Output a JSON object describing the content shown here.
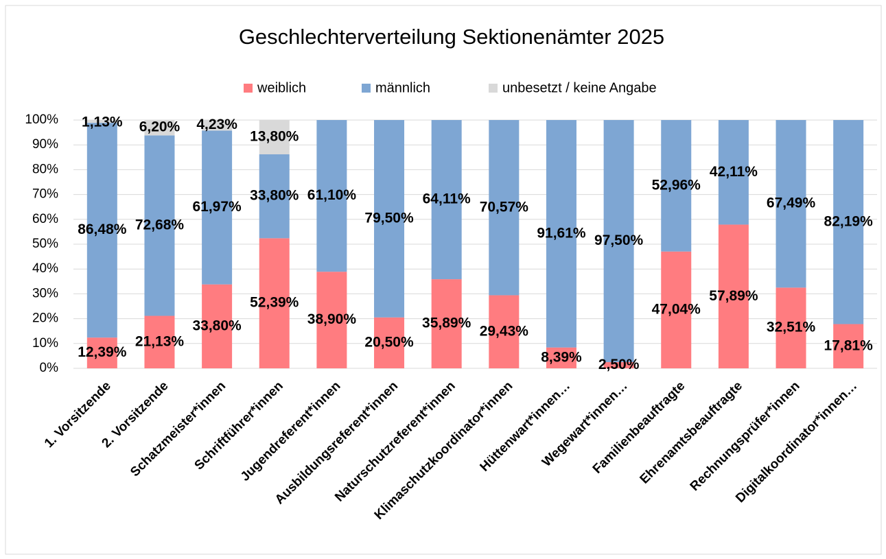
{
  "chart_data": {
    "type": "stacked_bar",
    "title": "Geschlechterverteilung Sektionenämter 2025",
    "categories": [
      "1. Vorsitzende",
      "2. Vorsitzende",
      "Schatzmeister*innen",
      "Schriftführer*innen",
      "Jugendreferent*innen",
      "Ausbildungsreferent*innen",
      "Naturschutzreferent*innen",
      "Klimaschutzkoordinator*innen",
      "Hüttenwart*innen…",
      "Wegewart*innen…",
      "Familienbeauftragte",
      "Ehrenamtsbeauftragte",
      "Rechnungsprüfer*innen",
      "Digitalkoordinator*innen…"
    ],
    "series": [
      {
        "name": "weiblich",
        "color": "#ff7c80",
        "values": [
          12.39,
          21.13,
          33.8,
          52.39,
          38.9,
          20.5,
          35.89,
          29.43,
          8.39,
          2.5,
          47.04,
          57.89,
          32.51,
          17.81
        ],
        "value_labels": [
          "12,39%",
          "21,13%",
          "33,80%",
          "52,39%",
          "38,90%",
          "20,50%",
          "35,89%",
          "29,43%",
          "8,39%",
          "2,50%",
          "47,04%",
          "57,89%",
          "32,51%",
          "17,81%"
        ]
      },
      {
        "name": "männlich",
        "color": "#7ea6d3",
        "values": [
          86.48,
          72.68,
          61.97,
          33.8,
          61.1,
          79.5,
          64.11,
          70.57,
          91.61,
          97.5,
          52.96,
          42.11,
          67.49,
          82.19
        ],
        "value_labels": [
          "86,48%",
          "72,68%",
          "61,97%",
          "33,80%",
          "61,10%",
          "79,50%",
          "64,11%",
          "70,57%",
          "91,61%",
          "97,50%",
          "52,96%",
          "42,11%",
          "67,49%",
          "82,19%"
        ]
      },
      {
        "name": "unbesetzt / keine Angabe",
        "color": "#d9d9d9",
        "values": [
          1.13,
          6.2,
          4.23,
          13.8,
          null,
          null,
          null,
          null,
          null,
          null,
          null,
          null,
          null,
          null
        ],
        "value_labels": [
          "1,13%",
          "6,20%",
          "4,23%",
          "13,80%",
          null,
          null,
          null,
          null,
          null,
          null,
          null,
          null,
          null,
          null
        ]
      }
    ],
    "ylim": [
      0,
      100
    ],
    "yticks": [
      {
        "value": 0,
        "label": "0%"
      },
      {
        "value": 10,
        "label": "10%"
      },
      {
        "value": 20,
        "label": "20%"
      },
      {
        "value": 30,
        "label": "30%"
      },
      {
        "value": 40,
        "label": "40%"
      },
      {
        "value": 50,
        "label": "50%"
      },
      {
        "value": 60,
        "label": "60%"
      },
      {
        "value": 70,
        "label": "70%"
      },
      {
        "value": 80,
        "label": "80%"
      },
      {
        "value": 90,
        "label": "90%"
      },
      {
        "value": 100,
        "label": "100%"
      }
    ],
    "grid": true,
    "legend": "top"
  }
}
